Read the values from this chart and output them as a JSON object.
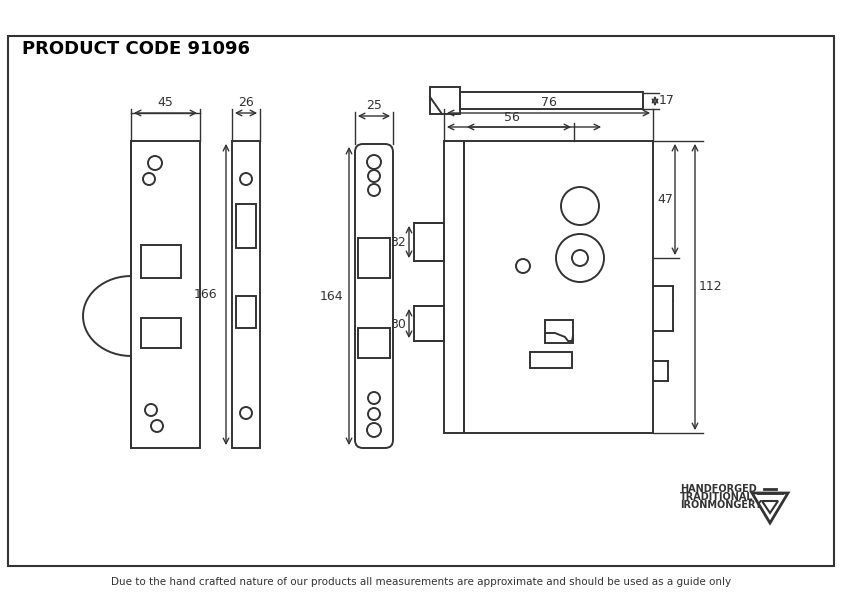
{
  "title": "PRODUCT CODE 91096",
  "footer": "Due to the hand crafted nature of our products all measurements are approximate and should be used as a guide only",
  "bg_color": "#ffffff",
  "border_color": "#333333",
  "line_color": "#333333",
  "dim_color": "#333333",
  "brand_line1": "HANDFORGED",
  "brand_line2": "TRADITIONAL",
  "brand_line3": "IRONMONGERY",
  "dims": {
    "d45": "45",
    "d26": "26",
    "d25": "25",
    "d76": "76",
    "d56": "56",
    "d166": "166",
    "d164": "164",
    "d30": "30",
    "d32": "32",
    "d47": "47",
    "d112": "112",
    "d17": "17"
  }
}
